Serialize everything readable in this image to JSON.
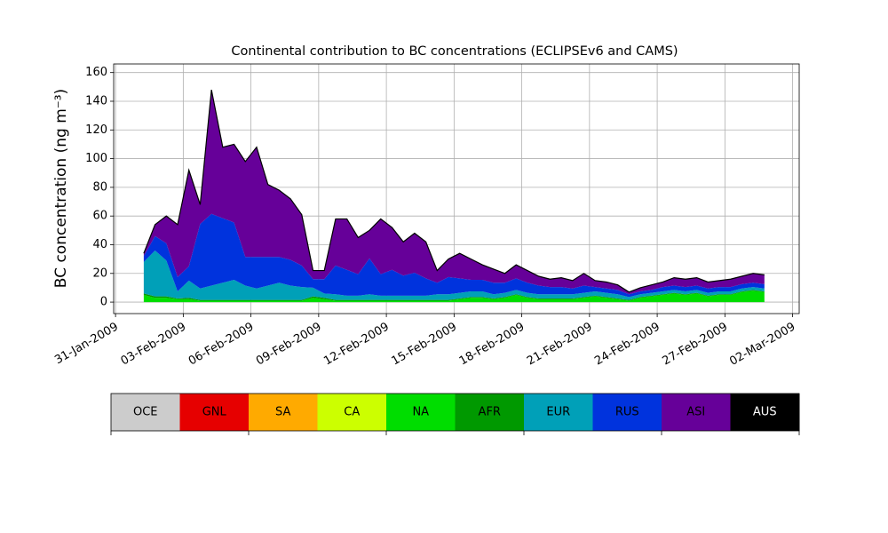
{
  "chart_data": {
    "type": "stacked_area",
    "title": "Continental contribution to BC concentrations (ECLIPSEv6 and CAMS)",
    "ylabel": "BC concentration (ng m⁻³)",
    "x": [
      "2009-02-01T06:00",
      "2009-02-01T18:00",
      "2009-02-02T06:00",
      "2009-02-02T18:00",
      "2009-02-03T06:00",
      "2009-02-03T18:00",
      "2009-02-04T06:00",
      "2009-02-04T18:00",
      "2009-02-05T06:00",
      "2009-02-05T18:00",
      "2009-02-06T06:00",
      "2009-02-06T18:00",
      "2009-02-07T06:00",
      "2009-02-07T18:00",
      "2009-02-08T06:00",
      "2009-02-08T18:00",
      "2009-02-09T06:00",
      "2009-02-09T18:00",
      "2009-02-10T06:00",
      "2009-02-10T18:00",
      "2009-02-11T06:00",
      "2009-02-11T18:00",
      "2009-02-12T06:00",
      "2009-02-12T18:00",
      "2009-02-13T06:00",
      "2009-02-13T18:00",
      "2009-02-14T06:00",
      "2009-02-14T18:00",
      "2009-02-15T06:00",
      "2009-02-15T18:00",
      "2009-02-16T06:00",
      "2009-02-16T18:00",
      "2009-02-17T06:00",
      "2009-02-17T18:00",
      "2009-02-18T06:00",
      "2009-02-18T18:00",
      "2009-02-19T06:00",
      "2009-02-19T18:00",
      "2009-02-20T06:00",
      "2009-02-20T18:00",
      "2009-02-21T06:00",
      "2009-02-21T18:00",
      "2009-02-22T06:00",
      "2009-02-22T18:00",
      "2009-02-23T06:00",
      "2009-02-23T18:00",
      "2009-02-24T06:00",
      "2009-02-24T18:00",
      "2009-02-25T06:00",
      "2009-02-25T18:00",
      "2009-02-26T06:00",
      "2009-02-26T18:00",
      "2009-02-27T06:00",
      "2009-02-27T18:00",
      "2009-02-28T06:00",
      "2009-02-28T18:00"
    ],
    "series": [
      {
        "name": "OCE",
        "color": "#cccccc",
        "values": [
          0,
          0,
          0,
          0,
          0,
          0,
          0,
          0,
          0,
          0,
          0,
          0,
          0,
          0,
          0,
          0,
          0,
          0,
          0,
          0,
          0,
          0,
          0,
          0,
          0,
          0,
          0,
          0,
          0,
          0,
          0,
          0,
          0,
          0,
          0,
          0,
          0,
          0,
          0,
          0,
          0,
          0,
          0,
          0,
          0,
          0,
          0,
          0,
          0,
          0,
          0,
          0,
          0,
          0,
          0,
          0
        ]
      },
      {
        "name": "GNL",
        "color": "#e60000",
        "values": [
          0,
          0,
          0,
          0,
          0,
          0,
          0,
          0,
          0,
          0,
          0,
          0,
          0,
          0,
          0,
          0,
          0,
          0,
          0,
          0,
          0,
          0,
          0,
          0,
          0,
          0,
          0,
          0,
          0,
          0,
          0,
          0,
          0,
          0,
          0,
          0,
          0,
          0,
          0,
          0,
          0,
          0,
          0,
          0,
          0,
          0,
          0,
          0,
          0,
          0,
          0,
          0,
          0,
          0,
          0,
          0
        ]
      },
      {
        "name": "SA",
        "color": "#ffaa00",
        "values": [
          0,
          0,
          0,
          0,
          0,
          0,
          0,
          0,
          0,
          0,
          0,
          0,
          0,
          0,
          0,
          0,
          0,
          0,
          0,
          0,
          0,
          0,
          0,
          0,
          0,
          0,
          0,
          0,
          0,
          0,
          0,
          0,
          0,
          0,
          0,
          0,
          0,
          0,
          0,
          0,
          0,
          0,
          0,
          0,
          0,
          0,
          0,
          0,
          0,
          0,
          0,
          0,
          0,
          0,
          0,
          0
        ]
      },
      {
        "name": "CA",
        "color": "#ccff00",
        "values": [
          0,
          0,
          0,
          0,
          0,
          0,
          0,
          0,
          0,
          0,
          0,
          0,
          0,
          0,
          0,
          0,
          0,
          0,
          0,
          0,
          0,
          0,
          0,
          0,
          0,
          0,
          0,
          0,
          0,
          0,
          0,
          0,
          0,
          0,
          0,
          0,
          0,
          0,
          0,
          0,
          0,
          0,
          0,
          0,
          0,
          0,
          0,
          0,
          0,
          0,
          0,
          0,
          0,
          0,
          0,
          0
        ]
      },
      {
        "name": "NA",
        "color": "#00dd00",
        "values": [
          5,
          3,
          3,
          2,
          2,
          1,
          1,
          1,
          1,
          1,
          1,
          1,
          1,
          1,
          1,
          3,
          2,
          1,
          1,
          1,
          1,
          1,
          1,
          1,
          1,
          1,
          1,
          1,
          2,
          3,
          3,
          2,
          3,
          5,
          3,
          2,
          2,
          2,
          2,
          3,
          4,
          3,
          2,
          1,
          3,
          4,
          5,
          6,
          5,
          6,
          4,
          5,
          5,
          7,
          8,
          7
        ]
      },
      {
        "name": "AFR",
        "color": "#009900",
        "values": [
          1,
          1,
          1,
          0.5,
          1,
          0.5,
          0.5,
          0.5,
          0.5,
          0.5,
          0.5,
          0.5,
          0.5,
          0.5,
          0.5,
          1,
          1,
          0.5,
          0.5,
          0.5,
          0.5,
          0.5,
          0.5,
          0.5,
          0.5,
          0.5,
          0.5,
          0.5,
          0.5,
          0.5,
          0.5,
          0.5,
          0.5,
          0.5,
          0.5,
          0.5,
          0.5,
          0.5,
          0.5,
          0.5,
          0.5,
          0.5,
          0.5,
          0.5,
          0.5,
          0.5,
          0.5,
          0.5,
          0.5,
          0.5,
          0.5,
          0.5,
          0.5,
          0.5,
          0.5,
          0.5
        ]
      },
      {
        "name": "EUR",
        "color": "#00a0b8",
        "values": [
          22,
          32,
          25,
          5,
          12,
          8,
          10,
          12,
          14,
          10,
          8,
          10,
          12,
          10,
          9,
          6,
          3,
          4,
          3,
          3,
          4,
          3,
          3,
          3,
          3,
          3,
          4,
          4,
          4,
          4,
          4,
          3,
          3,
          3,
          3,
          3,
          3,
          3,
          3,
          3,
          3,
          3,
          3,
          2,
          2,
          2,
          2,
          2,
          2,
          2,
          2,
          2,
          2,
          2,
          2,
          2
        ]
      },
      {
        "name": "RUS",
        "color": "#0033dd",
        "values": [
          4,
          10,
          12,
          10,
          10,
          45,
          50,
          45,
          40,
          20,
          22,
          20,
          18,
          18,
          15,
          6,
          10,
          20,
          18,
          15,
          25,
          15,
          18,
          14,
          16,
          12,
          8,
          12,
          10,
          8,
          8,
          8,
          7,
          8,
          7,
          6,
          5,
          5,
          4,
          5,
          3,
          3,
          3,
          2,
          2,
          2,
          3,
          3,
          3,
          3,
          3,
          3,
          3,
          3,
          3,
          3
        ]
      },
      {
        "name": "ASI",
        "color": "#660099",
        "values": [
          2,
          8,
          19,
          36.5,
          67,
          13.5,
          86.5,
          49.5,
          54.5,
          66.5,
          76.5,
          50.5,
          46.5,
          42.5,
          35.5,
          6,
          6,
          32.5,
          35.5,
          25.5,
          19.5,
          38.5,
          29.5,
          23.5,
          27.5,
          25.5,
          8.5,
          12.5,
          17.5,
          14.5,
          10.5,
          9.5,
          6.5,
          9.5,
          8.5,
          6.5,
          5.5,
          6.5,
          5.5,
          8.5,
          4.5,
          4.5,
          3.5,
          1.5,
          2.5,
          3.5,
          3.5,
          5.5,
          5.5,
          5.5,
          4.5,
          4.5,
          5.5,
          5.5,
          6.5,
          6.5
        ]
      },
      {
        "name": "AUS",
        "color": "#000000",
        "values": [
          0,
          0,
          0,
          0,
          0,
          0,
          0,
          0,
          0,
          0,
          0,
          0,
          0,
          0,
          0,
          0,
          0,
          0,
          0,
          0,
          0,
          0,
          0,
          0,
          0,
          0,
          0,
          0,
          0,
          0,
          0,
          0,
          0,
          0,
          0,
          0,
          0,
          0,
          0,
          0,
          0,
          0,
          0,
          0,
          0,
          0,
          0,
          0,
          0,
          0,
          0,
          0,
          0,
          0,
          0,
          0
        ]
      }
    ],
    "xlim": [
      "2009-01-30T22:00",
      "2009-03-02T07:00"
    ],
    "xticks": [
      {
        "value": "2009-01-31T00:00",
        "label": "31-Jan-2009"
      },
      {
        "value": "2009-02-03T00:00",
        "label": "03-Feb-2009"
      },
      {
        "value": "2009-02-06T00:00",
        "label": "06-Feb-2009"
      },
      {
        "value": "2009-02-09T00:00",
        "label": "09-Feb-2009"
      },
      {
        "value": "2009-02-12T00:00",
        "label": "12-Feb-2009"
      },
      {
        "value": "2009-02-15T00:00",
        "label": "15-Feb-2009"
      },
      {
        "value": "2009-02-18T00:00",
        "label": "18-Feb-2009"
      },
      {
        "value": "2009-02-21T00:00",
        "label": "21-Feb-2009"
      },
      {
        "value": "2009-02-24T00:00",
        "label": "24-Feb-2009"
      },
      {
        "value": "2009-02-27T00:00",
        "label": "27-Feb-2009"
      },
      {
        "value": "2009-03-02T00:00",
        "label": "02-Mar-2009"
      }
    ],
    "ylim": [
      -8,
      166
    ],
    "yticks": [
      0,
      20,
      40,
      60,
      80,
      100,
      120,
      140,
      160
    ],
    "grid": true
  }
}
